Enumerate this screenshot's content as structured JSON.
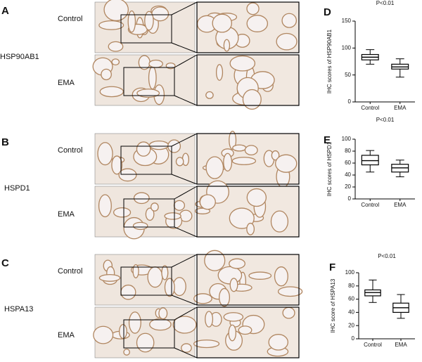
{
  "panels": [
    {
      "letter": "A",
      "gene": "HSP90AB1",
      "rows": [
        "Control",
        "EMA"
      ]
    },
    {
      "letter": "B",
      "gene": "HSPD1",
      "rows": [
        "Control",
        "EMA"
      ]
    },
    {
      "letter": "C",
      "gene": "HSPA13",
      "rows": [
        "Control",
        "EMA"
      ]
    }
  ],
  "chart_data": [
    {
      "type": "box",
      "panel": "D",
      "title": "P<0.01",
      "y_label": "IHC scores of HSP90AB1",
      "categories": [
        "Control",
        "EMA"
      ],
      "boxes": [
        {
          "min": 70,
          "q1": 78,
          "median": 83,
          "q3": 88,
          "max": 97
        },
        {
          "min": 46,
          "q1": 61,
          "median": 65,
          "q3": 70,
          "max": 80
        }
      ],
      "ylim": [
        0,
        150
      ],
      "yticks": [
        0,
        50,
        100,
        150
      ]
    },
    {
      "type": "box",
      "panel": "E",
      "title": "P<0.01",
      "y_label": "IHC scores of HSPD1",
      "categories": [
        "Control",
        "EMA"
      ],
      "boxes": [
        {
          "min": 45,
          "q1": 57,
          "median": 64,
          "q3": 73,
          "max": 81
        },
        {
          "min": 37,
          "q1": 45,
          "median": 52,
          "q3": 58,
          "max": 65
        }
      ],
      "ylim": [
        0,
        100
      ],
      "yticks": [
        0,
        20,
        40,
        60,
        80,
        100
      ]
    },
    {
      "type": "box",
      "panel": "F",
      "title": "P<0.01",
      "y_label": "IHC score of HSPA13",
      "categories": [
        "Control",
        "EMA"
      ],
      "boxes": [
        {
          "min": 55,
          "q1": 65,
          "median": 70,
          "q3": 74,
          "max": 89
        },
        {
          "min": 31,
          "q1": 40,
          "median": 47,
          "q3": 54,
          "max": 67
        }
      ],
      "ylim": [
        0,
        100
      ],
      "yticks": [
        0,
        20,
        40,
        60,
        80,
        100
      ]
    }
  ]
}
